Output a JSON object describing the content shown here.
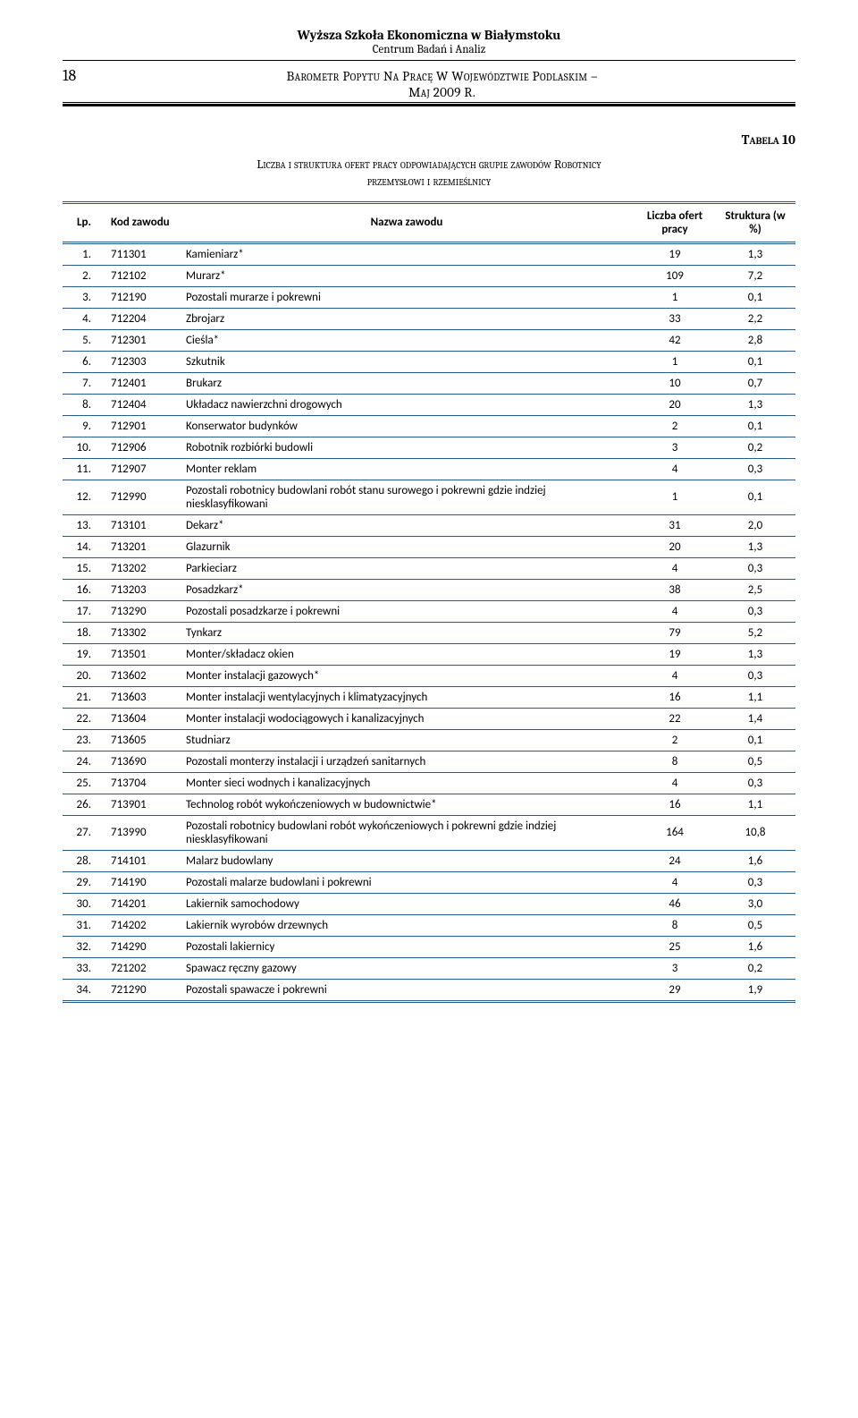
{
  "header": {
    "institution": "Wyższa Szkoła Ekonomiczna w Białymstoku",
    "center": "Centrum Badań i Analiz",
    "page_number": "18",
    "doc_title_line1": "Barometr Popytu Na Pracę W Województwie Podlaskim –",
    "doc_title_line2": "Maj 2009 R."
  },
  "table_meta": {
    "label": "Tabela 10",
    "caption_line1": "Liczba i struktura ofert pracy odpowiadających grupie zawodów Robotnicy",
    "caption_line2": "przemysłowi i rzemieślnicy"
  },
  "columns": {
    "lp": "Lp.",
    "kod": "Kod zawodu",
    "nazwa": "Nazwa zawodu",
    "liczba": "Liczba ofert pracy",
    "struktura": "Struktura (w %)"
  },
  "rows": [
    {
      "lp": "1.",
      "kod": "711301",
      "nazwa": "Kamieniarz*",
      "liczba": "19",
      "str": "1,3"
    },
    {
      "lp": "2.",
      "kod": "712102",
      "nazwa": "Murarz*",
      "liczba": "109",
      "str": "7,2"
    },
    {
      "lp": "3.",
      "kod": "712190",
      "nazwa": "Pozostali murarze i pokrewni",
      "liczba": "1",
      "str": "0,1"
    },
    {
      "lp": "4.",
      "kod": "712204",
      "nazwa": "Zbrojarz",
      "liczba": "33",
      "str": "2,2"
    },
    {
      "lp": "5.",
      "kod": "712301",
      "nazwa": "Cieśla*",
      "liczba": "42",
      "str": "2,8"
    },
    {
      "lp": "6.",
      "kod": "712303",
      "nazwa": "Szkutnik",
      "liczba": "1",
      "str": "0,1"
    },
    {
      "lp": "7.",
      "kod": "712401",
      "nazwa": "Brukarz",
      "liczba": "10",
      "str": "0,7"
    },
    {
      "lp": "8.",
      "kod": "712404",
      "nazwa": "Układacz nawierzchni drogowych",
      "liczba": "20",
      "str": "1,3"
    },
    {
      "lp": "9.",
      "kod": "712901",
      "nazwa": "Konserwator budynków",
      "liczba": "2",
      "str": "0,1"
    },
    {
      "lp": "10.",
      "kod": "712906",
      "nazwa": "Robotnik rozbiórki budowli",
      "liczba": "3",
      "str": "0,2"
    },
    {
      "lp": "11.",
      "kod": "712907",
      "nazwa": "Monter reklam",
      "liczba": "4",
      "str": "0,3"
    },
    {
      "lp": "12.",
      "kod": "712990",
      "nazwa": "Pozostali robotnicy budowlani robót stanu surowego i pokrewni gdzie indziej niesklasyfikowani",
      "liczba": "1",
      "str": "0,1"
    },
    {
      "lp": "13.",
      "kod": "713101",
      "nazwa": "Dekarz*",
      "liczba": "31",
      "str": "2,0"
    },
    {
      "lp": "14.",
      "kod": "713201",
      "nazwa": "Glazurnik",
      "liczba": "20",
      "str": "1,3"
    },
    {
      "lp": "15.",
      "kod": "713202",
      "nazwa": "Parkieciarz",
      "liczba": "4",
      "str": "0,3"
    },
    {
      "lp": "16.",
      "kod": "713203",
      "nazwa": "Posadzkarz*",
      "liczba": "38",
      "str": "2,5"
    },
    {
      "lp": "17.",
      "kod": "713290",
      "nazwa": "Pozostali posadzkarze i pokrewni",
      "liczba": "4",
      "str": "0,3"
    },
    {
      "lp": "18.",
      "kod": "713302",
      "nazwa": "Tynkarz",
      "liczba": "79",
      "str": "5,2"
    },
    {
      "lp": "19.",
      "kod": "713501",
      "nazwa": "Monter/składacz okien",
      "liczba": "19",
      "str": "1,3"
    },
    {
      "lp": "20.",
      "kod": "713602",
      "nazwa": "Monter instalacji gazowych*",
      "liczba": "4",
      "str": "0,3"
    },
    {
      "lp": "21.",
      "kod": "713603",
      "nazwa": "Monter instalacji wentylacyjnych i klimatyzacyjnych",
      "liczba": "16",
      "str": "1,1"
    },
    {
      "lp": "22.",
      "kod": "713604",
      "nazwa": "Monter instalacji wodociągowych i kanalizacyjnych",
      "liczba": "22",
      "str": "1,4"
    },
    {
      "lp": "23.",
      "kod": "713605",
      "nazwa": "Studniarz",
      "liczba": "2",
      "str": "0,1"
    },
    {
      "lp": "24.",
      "kod": "713690",
      "nazwa": "Pozostali monterzy instalacji i urządzeń sanitarnych",
      "liczba": "8",
      "str": "0,5"
    },
    {
      "lp": "25.",
      "kod": "713704",
      "nazwa": "Monter sieci wodnych i kanalizacyjnych",
      "liczba": "4",
      "str": "0,3"
    },
    {
      "lp": "26.",
      "kod": "713901",
      "nazwa": "Technolog robót wykończeniowych w budownictwie*",
      "liczba": "16",
      "str": "1,1"
    },
    {
      "lp": "27.",
      "kod": "713990",
      "nazwa": "Pozostali robotnicy budowlani robót wykończeniowych i pokrewni gdzie indziej niesklasyfikowani",
      "liczba": "164",
      "str": "10,8"
    },
    {
      "lp": "28.",
      "kod": "714101",
      "nazwa": "Malarz budowlany",
      "liczba": "24",
      "str": "1,6"
    },
    {
      "lp": "29.",
      "kod": "714190",
      "nazwa": "Pozostali malarze budowlani i pokrewni",
      "liczba": "4",
      "str": "0,3"
    },
    {
      "lp": "30.",
      "kod": "714201",
      "nazwa": "Lakiernik samochodowy",
      "liczba": "46",
      "str": "3,0"
    },
    {
      "lp": "31.",
      "kod": "714202",
      "nazwa": "Lakiernik wyrobów drzewnych",
      "liczba": "8",
      "str": "0,5"
    },
    {
      "lp": "32.",
      "kod": "714290",
      "nazwa": "Pozostali lakiernicy",
      "liczba": "25",
      "str": "1,6"
    },
    {
      "lp": "33.",
      "kod": "721202",
      "nazwa": "Spawacz ręczny gazowy",
      "liczba": "3",
      "str": "0,2"
    },
    {
      "lp": "34.",
      "kod": "721290",
      "nazwa": "Pozostali spawacze i pokrewni",
      "liczba": "29",
      "str": "1,9"
    }
  ]
}
